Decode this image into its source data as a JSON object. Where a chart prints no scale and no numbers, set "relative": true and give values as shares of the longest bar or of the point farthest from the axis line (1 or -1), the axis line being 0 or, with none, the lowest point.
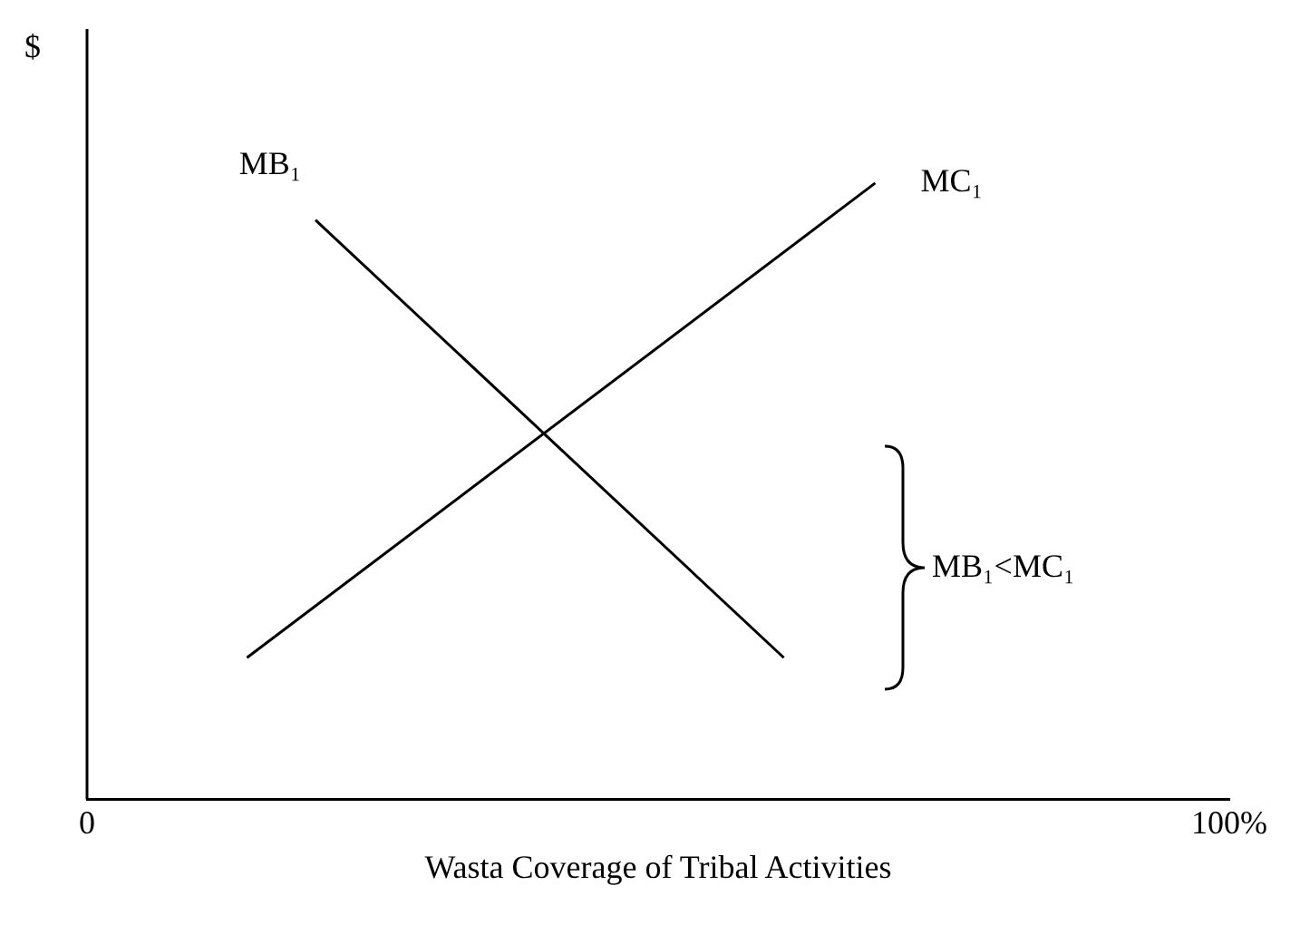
{
  "chart_data": {
    "type": "line",
    "relative": true,
    "xlabel": "Wasta Coverage of Tribal Activities",
    "ylabel": "$",
    "xlim": [
      0,
      100
    ],
    "xticks": [
      {
        "value": 0,
        "label": "0"
      },
      {
        "value": 100,
        "label": "100%"
      }
    ],
    "series": [
      {
        "name": "MB₁",
        "color": "#000000",
        "x": [
          20,
          61
        ],
        "values": [
          0.94,
          0.23
        ]
      },
      {
        "name": "MC₁",
        "color": "#000000",
        "x": [
          14,
          69
        ],
        "values": [
          0.23,
          1
        ]
      }
    ],
    "annotations": [
      "MB₁<MC₁"
    ],
    "grid": false,
    "legend": false,
    "marker": "none",
    "line_style": "solid"
  }
}
